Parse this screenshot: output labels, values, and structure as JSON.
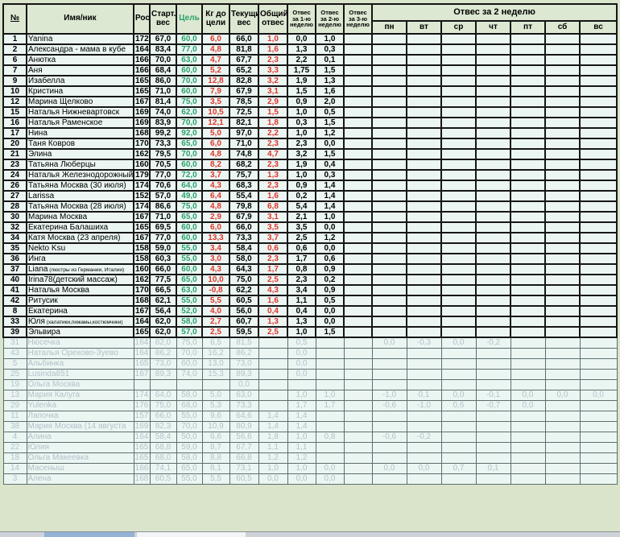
{
  "header": {
    "num": "№",
    "cols": {
      "name": "Имя/ник",
      "height": "Рост",
      "start": "Старт. вес",
      "goal": "Цель",
      "to_goal": "Кг до цели",
      "current": "Текущий вес",
      "total": "Общий отвес",
      "week1": "Отвес за 1-ю неделю",
      "week2": "Отвес за 2-ю неделю",
      "week3": "Отвес за 3-ю неделю"
    },
    "week2_group": "Отвес за 2 неделю",
    "days": [
      "пн",
      "вт",
      "ср",
      "чт",
      "пт",
      "сб",
      "вс"
    ]
  },
  "colors": {
    "header_bg": "#dce8d2",
    "cell_bg": "#ebf6f3",
    "goal_green": "#2aa06a",
    "loss_red": "#e0352a",
    "inactive_gray": "#b3c1c8",
    "page_bg": "#d9e4cb"
  },
  "rows": [
    {
      "state": "active",
      "n": "1",
      "name": "Yanina",
      "height": "172",
      "start": "67,0",
      "goal": "60,0",
      "to_goal": "6,0",
      "current": "66,0",
      "total": "1,0",
      "week1": "0,0",
      "week2": "1,0",
      "week3": "",
      "days": [
        "",
        "",
        "",
        "",
        "",
        "",
        ""
      ]
    },
    {
      "state": "active",
      "n": "2",
      "name": "Александра - мама в кубе",
      "height": "164",
      "start": "83,4",
      "goal": "77,0",
      "to_goal": "4,8",
      "current": "81,8",
      "total": "1,6",
      "week1": "1,3",
      "week2": "0,3",
      "week3": "",
      "days": [
        "",
        "",
        "",
        "",
        "",
        "",
        ""
      ]
    },
    {
      "state": "active",
      "n": "6",
      "name": "Анютка",
      "height": "166",
      "start": "70,0",
      "goal": "63,0",
      "to_goal": "4,7",
      "current": "67,7",
      "total": "2,3",
      "week1": "2,2",
      "week2": "0,1",
      "week3": "",
      "days": [
        "",
        "",
        "",
        "",
        "",
        "",
        ""
      ]
    },
    {
      "state": "active",
      "n": "7",
      "name": "Аня",
      "height": "166",
      "start": "68,4",
      "goal": "60,0",
      "to_goal": "5,2",
      "current": "65,2",
      "total": "3,3",
      "week1": "1,75",
      "week2": "1,5",
      "week3": "",
      "days": [
        "",
        "",
        "",
        "",
        "",
        "",
        ""
      ]
    },
    {
      "state": "active",
      "n": "9",
      "name": "Изабелла",
      "height": "165",
      "start": "86,0",
      "goal": "70,0",
      "to_goal": "12,8",
      "current": "82,8",
      "total": "3,2",
      "week1": "1,9",
      "week2": "1,3",
      "week3": "",
      "days": [
        "",
        "",
        "",
        "",
        "",
        "",
        ""
      ]
    },
    {
      "state": "active",
      "n": "10",
      "name": "Кристина",
      "height": "165",
      "start": "71,0",
      "goal": "60,0",
      "to_goal": "7,9",
      "current": "67,9",
      "total": "3,1",
      "week1": "1,5",
      "week2": "1,6",
      "week3": "",
      "days": [
        "",
        "",
        "",
        "",
        "",
        "",
        ""
      ]
    },
    {
      "state": "active",
      "n": "12",
      "name": "Марина Щелково",
      "height": "167",
      "start": "81,4",
      "goal": "75,0",
      "to_goal": "3,5",
      "current": "78,5",
      "total": "2,9",
      "week1": "0,9",
      "week2": "2,0",
      "week3": "",
      "days": [
        "",
        "",
        "",
        "",
        "",
        "",
        ""
      ]
    },
    {
      "state": "active",
      "n": "15",
      "name": "Наталья Нижневартовск",
      "height": "169",
      "start": "74,0",
      "goal": "62,0",
      "to_goal": "10,5",
      "current": "72,5",
      "total": "1,5",
      "week1": "1,0",
      "week2": "0,5",
      "week3": "",
      "days": [
        "",
        "",
        "",
        "",
        "",
        "",
        ""
      ]
    },
    {
      "state": "active",
      "n": "16",
      "name": "Наталья Раменское",
      "height": "169",
      "start": "83,9",
      "goal": "70,0",
      "to_goal": "12,1",
      "current": "82,1",
      "total": "1,8",
      "week1": "0,3",
      "week2": "1,5",
      "week3": "",
      "days": [
        "",
        "",
        "",
        "",
        "",
        "",
        ""
      ]
    },
    {
      "state": "active",
      "n": "17",
      "name": "Нина",
      "height": "168",
      "start": "99,2",
      "goal": "92,0",
      "to_goal": "5,0",
      "current": "97,0",
      "total": "2,2",
      "week1": "1,0",
      "week2": "1,2",
      "week3": "",
      "days": [
        "",
        "",
        "",
        "",
        "",
        "",
        ""
      ]
    },
    {
      "state": "active",
      "n": "20",
      "name": "Таня Ковров",
      "height": "170",
      "start": "73,3",
      "goal": "65,0",
      "to_goal": "6,0",
      "current": "71,0",
      "total": "2,3",
      "week1": "2,3",
      "week2": "0,0",
      "week3": "",
      "days": [
        "",
        "",
        "",
        "",
        "",
        "",
        ""
      ]
    },
    {
      "state": "active",
      "n": "21",
      "name": "Элина",
      "height": "162",
      "start": "79,5",
      "goal": "70,0",
      "to_goal": "4,8",
      "current": "74,8",
      "total": "4,7",
      "week1": "3,2",
      "week2": "1,5",
      "week3": "",
      "days": [
        "",
        "",
        "",
        "",
        "",
        "",
        ""
      ]
    },
    {
      "state": "active",
      "n": "23",
      "name": "Татьяна Люберцы",
      "height": "160",
      "start": "70,5",
      "goal": "60,0",
      "to_goal": "8,2",
      "current": "68,2",
      "total": "2,3",
      "week1": "1,9",
      "week2": "0,4",
      "week3": "",
      "days": [
        "",
        "",
        "",
        "",
        "",
        "",
        ""
      ]
    },
    {
      "state": "active",
      "n": "24",
      "name": "Наталья Железнодорожный",
      "height": "179",
      "start": "77,0",
      "goal": "72,0",
      "to_goal": "3,7",
      "current": "75,7",
      "total": "1,3",
      "week1": "1,0",
      "week2": "0,3",
      "week3": "",
      "days": [
        "",
        "",
        "",
        "",
        "",
        "",
        ""
      ]
    },
    {
      "state": "active",
      "n": "26",
      "name": "Татьяна Москва (30 июля)",
      "height": "174",
      "start": "70,6",
      "goal": "64,0",
      "to_goal": "4,3",
      "current": "68,3",
      "total": "2,3",
      "week1": "0,9",
      "week2": "1,4",
      "week3": "",
      "days": [
        "",
        "",
        "",
        "",
        "",
        "",
        ""
      ]
    },
    {
      "state": "active",
      "n": "27",
      "name": "Larissa",
      "height": "152",
      "start": "57,0",
      "goal": "49,0",
      "to_goal": "6,4",
      "current": "55,4",
      "total": "1,6",
      "week1": "0,2",
      "week2": "1,4",
      "week3": "",
      "days": [
        "",
        "",
        "",
        "",
        "",
        "",
        ""
      ]
    },
    {
      "state": "active",
      "n": "28",
      "name": "Татьяна Москва (28 июля)",
      "height": "174",
      "start": "86,6",
      "goal": "75,0",
      "to_goal": "4,8",
      "current": "79,8",
      "total": "6,8",
      "week1": "5,4",
      "week2": "1,4",
      "week3": "",
      "days": [
        "",
        "",
        "",
        "",
        "",
        "",
        ""
      ]
    },
    {
      "state": "active",
      "n": "30",
      "name": "Марина Москва",
      "height": "167",
      "start": "71,0",
      "goal": "65,0",
      "to_goal": "2,9",
      "current": "67,9",
      "total": "3,1",
      "week1": "2,1",
      "week2": "1,0",
      "week3": "",
      "days": [
        "",
        "",
        "",
        "",
        "",
        "",
        ""
      ]
    },
    {
      "state": "active",
      "n": "32",
      "name": "Екатерина Балашиха",
      "height": "165",
      "start": "69,5",
      "goal": "60,0",
      "to_goal": "6,0",
      "current": "66,0",
      "total": "3,5",
      "week1": "3,5",
      "week2": "0,0",
      "week3": "",
      "days": [
        "",
        "",
        "",
        "",
        "",
        "",
        ""
      ]
    },
    {
      "state": "active",
      "n": "34",
      "name": "Катя Москва (23 апреля)",
      "height": "167",
      "start": "77,0",
      "goal": "60,0",
      "to_goal": "13,3",
      "current": "73,3",
      "total": "3,7",
      "week1": "2,5",
      "week2": "1,2",
      "week3": "",
      "days": [
        "",
        "",
        "",
        "",
        "",
        "",
        ""
      ]
    },
    {
      "state": "active",
      "n": "35",
      "name": "Nekto Ksu",
      "height": "158",
      "start": "59,0",
      "goal": "55,0",
      "to_goal": "3,4",
      "current": "58,4",
      "total": "0,6",
      "week1": "0,6",
      "week2": "0,0",
      "week3": "",
      "days": [
        "",
        "",
        "",
        "",
        "",
        "",
        ""
      ]
    },
    {
      "state": "active",
      "n": "36",
      "name": "Инга",
      "height": "158",
      "start": "60,3",
      "goal": "55,0",
      "to_goal": "3,0",
      "current": "58,0",
      "total": "2,3",
      "week1": "1,7",
      "week2": "0,6",
      "week3": "",
      "days": [
        "",
        "",
        "",
        "",
        "",
        "",
        ""
      ]
    },
    {
      "state": "active",
      "n": "37",
      "name": "Liana",
      "name_small": "(люстры из Германии, Италии)",
      "height": "160",
      "start": "66,0",
      "goal": "60,0",
      "to_goal": "4,3",
      "current": "64,3",
      "total": "1,7",
      "week1": "0,8",
      "week2": "0,9",
      "week3": "",
      "days": [
        "",
        "",
        "",
        "",
        "",
        "",
        ""
      ]
    },
    {
      "state": "active",
      "n": "40",
      "name": "Irina78(детский массаж)",
      "height": "162",
      "start": "77,5",
      "goal": "65,0",
      "to_goal": "10,0",
      "current": "75,0",
      "total": "2,5",
      "week1": "2,3",
      "week2": "0,2",
      "week3": "",
      "days": [
        "",
        "",
        "",
        "",
        "",
        "",
        ""
      ]
    },
    {
      "state": "active",
      "n": "41",
      "name": "Наталья Москва",
      "height": "170",
      "start": "66,5",
      "goal": "63,0",
      "to_goal": "-0,8",
      "current": "62,2",
      "total": "4,3",
      "week1": "3,4",
      "week2": "0,9",
      "week3": "",
      "days": [
        "",
        "",
        "",
        "",
        "",
        "",
        ""
      ]
    },
    {
      "state": "active",
      "n": "42",
      "name": "Ритусик",
      "height": "168",
      "start": "62,1",
      "goal": "55,0",
      "to_goal": "5,5",
      "current": "60,5",
      "total": "1,6",
      "week1": "1,1",
      "week2": "0,5",
      "week3": "",
      "days": [
        "",
        "",
        "",
        "",
        "",
        "",
        ""
      ]
    },
    {
      "state": "active",
      "n": "8",
      "name": "Екатерина",
      "height": "167",
      "start": "56,4",
      "goal": "52,0",
      "to_goal": "4,0",
      "current": "56,0",
      "total": "0,4",
      "week1": "0,4",
      "week2": "0,0",
      "week3": "",
      "days": [
        "",
        "",
        "",
        "",
        "",
        "",
        ""
      ]
    },
    {
      "state": "active",
      "n": "33",
      "name": "Юля",
      "name_small": "(халатики,пижамы,костюмчики)",
      "height": "164",
      "start": "62,0",
      "goal": "58,0",
      "to_goal": "2,7",
      "current": "60,7",
      "total": "1,3",
      "week1": "1,3",
      "week2": "0,0",
      "week3": "",
      "days": [
        "",
        "",
        "",
        "",
        "",
        "",
        ""
      ]
    },
    {
      "state": "active",
      "n": "39",
      "name": "Эльвира",
      "height": "165",
      "start": "62,0",
      "goal": "57,0",
      "to_goal": "2,5",
      "current": "59,5",
      "total": "2,5",
      "week1": "1,0",
      "week2": "1,5",
      "week3": "",
      "days": [
        "",
        "",
        "",
        "",
        "",
        "",
        ""
      ]
    },
    {
      "state": "inactive",
      "n": "31",
      "name": "Нюсечка",
      "height": "164",
      "start": "82,0",
      "goal": "75,0",
      "to_goal": "6,5",
      "current": "81,5",
      "total": "",
      "week1": "0,5",
      "week2": "",
      "week3": "",
      "days": [
        "0,0",
        "-0,3",
        "0,0",
        "-0,2",
        "",
        "",
        ""
      ]
    },
    {
      "state": "inactive",
      "n": "43",
      "name": "Наталья Орехово-Зуево",
      "height": "164",
      "start": "86,2",
      "goal": "70,0",
      "to_goal": "16,2",
      "current": "86,2",
      "total": "",
      "week1": "0,0",
      "week2": "",
      "week3": "",
      "days": [
        "",
        "",
        "",
        "",
        "",
        "",
        ""
      ]
    },
    {
      "state": "inactive",
      "n": "5",
      "name": "Альбинка",
      "height": "165",
      "start": "73,0",
      "goal": "60,0",
      "to_goal": "13,0",
      "current": "73,0",
      "total": "",
      "week1": "0,0",
      "week2": "",
      "week3": "",
      "days": [
        "",
        "",
        "",
        "",
        "",
        "",
        ""
      ]
    },
    {
      "state": "inactive",
      "n": "25",
      "name": "Lusinda851",
      "height": "167",
      "start": "89,3",
      "goal": "74,0",
      "to_goal": "15,3",
      "current": "89,3",
      "total": "",
      "week1": "0,0",
      "week2": "",
      "week3": "",
      "days": [
        "",
        "",
        "",
        "",
        "",
        "",
        ""
      ]
    },
    {
      "state": "inactive",
      "n": "19",
      "name": "Ольга Москва",
      "height": "",
      "start": "",
      "goal": "",
      "to_goal": "",
      "current": "0,0",
      "total": "",
      "week1": "",
      "week2": "",
      "week3": "",
      "days": [
        "",
        "",
        "",
        "",
        "",
        "",
        ""
      ]
    },
    {
      "state": "inactive",
      "n": "13",
      "name": "Мария Калуга",
      "height": "174",
      "start": "64,0",
      "goal": "58,0",
      "to_goal": "5,0",
      "current": "63,0",
      "total": "",
      "week1": "1,0",
      "week2": "1,0",
      "week3": "",
      "days": [
        "-1,0",
        "0,1",
        "0,0",
        "-0,1",
        "0,0",
        "0,0",
        "0,0"
      ]
    },
    {
      "state": "inactive",
      "n": "29",
      "name": "Yulenka",
      "height": "176",
      "start": "75,0",
      "goal": "68,0",
      "to_goal": "5,3",
      "current": "73,3",
      "total": "",
      "week1": "1,7",
      "week2": "1,7",
      "week3": "",
      "days": [
        "-0,6",
        "-1,0",
        "0,6",
        "-0,7",
        "0,0",
        "",
        ""
      ]
    },
    {
      "state": "inactive",
      "n": "11",
      "name": "Лапочка",
      "height": "157",
      "start": "66,0",
      "goal": "55,0",
      "to_goal": "9,6",
      "current": "64,6",
      "total": "1,4",
      "week1": "1,4",
      "week2": "",
      "week3": "",
      "days": [
        "",
        "",
        "",
        "",
        "",
        "",
        ""
      ]
    },
    {
      "state": "inactive",
      "n": "38",
      "name": "Мария Москва (14 августа",
      "height": "169",
      "start": "82,3",
      "goal": "70,0",
      "to_goal": "10,9",
      "current": "80,9",
      "total": "1,4",
      "week1": "1,4",
      "week2": "",
      "week3": "",
      "days": [
        "",
        "",
        "",
        "",
        "",
        "",
        ""
      ]
    },
    {
      "state": "inactive",
      "n": "4",
      "name": "Алина",
      "height": "164",
      "start": "58,4",
      "goal": "50,0",
      "to_goal": "6,6",
      "current": "56,6",
      "total": "1,8",
      "week1": "1,0",
      "week2": "0,8",
      "week3": "",
      "days": [
        "-0,6",
        "-0,2",
        "",
        "",
        "",
        "",
        ""
      ]
    },
    {
      "state": "inactive",
      "n": "22",
      "name": "Юлия",
      "height": "165",
      "start": "68,8",
      "goal": "59,0",
      "to_goal": "8,7",
      "current": "67,7",
      "total": "1,1",
      "week1": "1,1",
      "week2": "",
      "week3": "",
      "days": [
        "",
        "",
        "",
        "",
        "",
        "",
        ""
      ]
    },
    {
      "state": "inactive",
      "n": "18",
      "name": "Ольга Макеевка",
      "height": "165",
      "start": "68,0",
      "goal": "58,0",
      "to_goal": "8,8",
      "current": "66,8",
      "total": "1,2",
      "week1": "1,2",
      "week2": "",
      "week3": "",
      "days": [
        "",
        "",
        "",
        "",
        "",
        "",
        ""
      ]
    },
    {
      "state": "inactive",
      "n": "14",
      "name": "Масеныш",
      "height": "166",
      "start": "74,1",
      "goal": "65,0",
      "to_goal": "8,1",
      "current": "73,1",
      "total": "1,0",
      "week1": "1,0",
      "week2": "0,0",
      "week3": "",
      "days": [
        "0,0",
        "0,0",
        "0,7",
        "0,1",
        "",
        "",
        ""
      ]
    },
    {
      "state": "inactive",
      "n": "3",
      "name": "Алена",
      "height": "168",
      "start": "60,5",
      "goal": "55,0",
      "to_goal": "5,5",
      "current": "60,5",
      "total": "0,0",
      "week1": "0,0",
      "week2": "0,0",
      "week3": "",
      "days": [
        "",
        "",
        "",
        "",
        "",
        "",
        ""
      ]
    }
  ]
}
